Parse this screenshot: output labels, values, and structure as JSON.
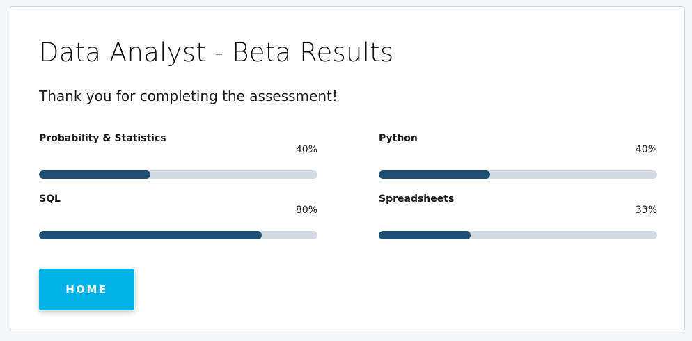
{
  "page": {
    "title": "Data Analyst - Beta Results",
    "subtitle": "Thank you for completing the assessment!"
  },
  "skills": [
    {
      "name": "Probability & Statistics",
      "percent_label": "40%",
      "value": 40
    },
    {
      "name": "Python",
      "percent_label": "40%",
      "value": 40
    },
    {
      "name": "SQL",
      "percent_label": "80%",
      "value": 80
    },
    {
      "name": "Spreadsheets",
      "percent_label": "33%",
      "value": 33
    }
  ],
  "actions": {
    "home_label": "HOME"
  },
  "colors": {
    "bar_fill": "#1e5073",
    "bar_track": "#d3dce4",
    "button": "#00b2e7"
  }
}
